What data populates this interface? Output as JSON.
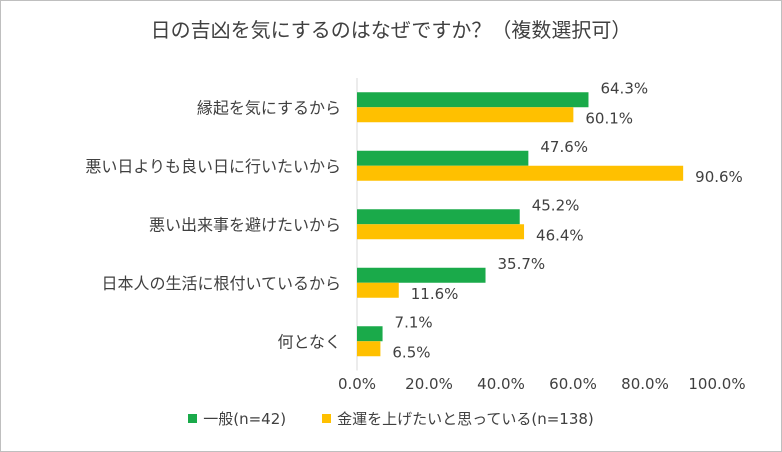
{
  "chart_data": {
    "type": "bar",
    "orientation": "horizontal",
    "title": "日の吉凶を気にするのはなぜですか？（複数選択可）",
    "categories": [
      "縁起を気にするから",
      "悪い日よりも良い日に行いたいから",
      "悪い出来事を避けたいから",
      "日本人の生活に根付いているから",
      "何となく"
    ],
    "series": [
      {
        "name": "一般(n=42)",
        "color": "#1aaa4a",
        "values": [
          64.3,
          47.6,
          45.2,
          35.7,
          7.1
        ],
        "labels": [
          "64.3%",
          "47.6%",
          "45.2%",
          "35.7%",
          "7.1%"
        ]
      },
      {
        "name": "金運を上げたいと思っている(n=138)",
        "color": "#ffc000",
        "values": [
          60.1,
          90.6,
          46.4,
          11.6,
          6.5
        ],
        "labels": [
          "60.1%",
          "90.6%",
          "46.4%",
          "11.6%",
          "6.5%"
        ]
      }
    ],
    "xlim": [
      0,
      100
    ],
    "xticks": [
      "0.0%",
      "20.0%",
      "40.0%",
      "60.0%",
      "80.0%",
      "100.0%"
    ],
    "xlabel": "",
    "ylabel": "",
    "legend_position": "bottom",
    "grid": false
  }
}
